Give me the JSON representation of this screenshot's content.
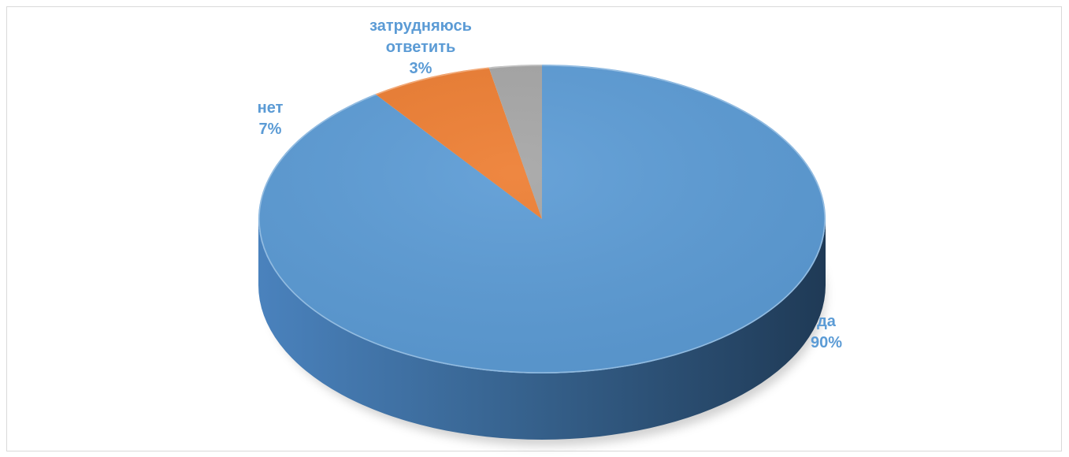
{
  "chart_data": {
    "type": "pie",
    "style": "3d",
    "title": "",
    "categories": [
      "да",
      "нет",
      "затрудняюсь ответить"
    ],
    "values": [
      90,
      7,
      3
    ],
    "labels": [
      {
        "lines": [
          "да",
          "90%"
        ]
      },
      {
        "lines": [
          "нет",
          "7%"
        ]
      },
      {
        "lines": [
          "затрудняюсь",
          "ответить",
          "3%"
        ]
      }
    ],
    "colors": [
      "#5B9BD5",
      "#ED7D31",
      "#A5A5A5"
    ],
    "label_color": "#5B9BD5",
    "legend": "none"
  }
}
